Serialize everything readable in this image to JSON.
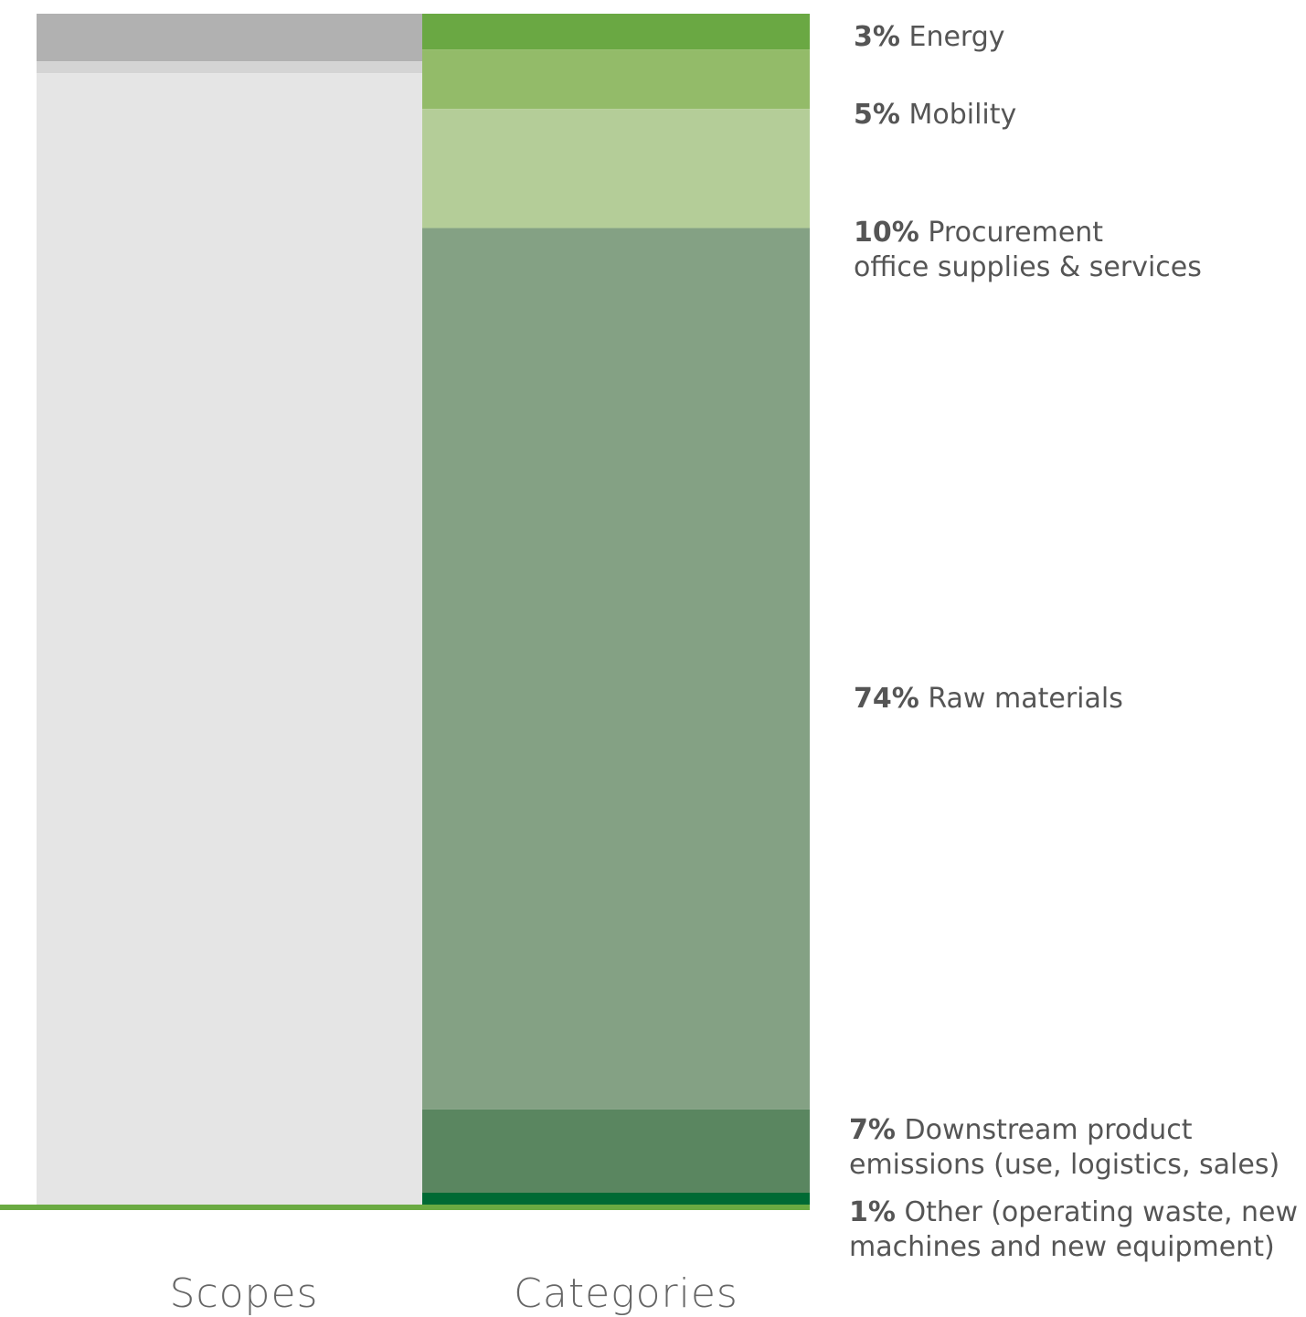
{
  "chart_data": {
    "type": "bar",
    "stacked": true,
    "normalized_percent": true,
    "categories": [
      "Scopes",
      "Categories"
    ],
    "colors": {
      "scope_top": "#b1b1b1",
      "scope_mid": "#d4d4d4",
      "scope_main": "#e5e5e5",
      "baseline": "#6aaa42"
    },
    "scopes_column": {
      "segments_top_to_bottom": [
        {
          "value": 4,
          "color": "#b1b1b1"
        },
        {
          "value": 1,
          "color": "#d4d4d4"
        },
        {
          "value": 95,
          "color": "#e5e5e5"
        }
      ]
    },
    "categories_column": {
      "segments_top_to_bottom": [
        {
          "pct_label": "3%",
          "name_lines": [
            "Energy"
          ],
          "value": 3,
          "color": "#6aa843"
        },
        {
          "pct_label": "5%",
          "name_lines": [
            "Mobility"
          ],
          "value": 5,
          "color": "#93bb69"
        },
        {
          "pct_label": "10%",
          "name_lines": [
            "Procurement",
            "office supplies & services"
          ],
          "value": 10,
          "color": "#b4cd98"
        },
        {
          "pct_label": "74%",
          "name_lines": [
            "Raw materials"
          ],
          "value": 74,
          "color": "#84a184"
        },
        {
          "pct_label": "7%",
          "name_lines": [
            "Downstream product",
            "emissions (use, logistics, sales)"
          ],
          "value": 7,
          "color": "#5a8660"
        },
        {
          "pct_label": "1%",
          "name_lines": [
            "Other (operating waste, new",
            "machines and new equipment)"
          ],
          "value": 1,
          "color": "#006a34"
        }
      ]
    },
    "ylim": [
      0,
      100
    ],
    "title": "",
    "xlabel": "",
    "ylabel": ""
  }
}
